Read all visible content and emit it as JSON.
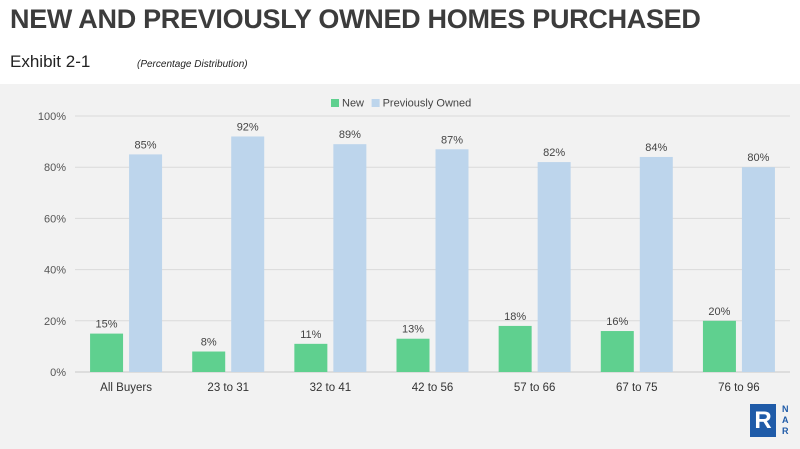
{
  "header": {
    "title": "NEW AND PREVIOUSLY OWNED HOMES PURCHASED",
    "exhibit": "Exhibit 2-1",
    "subtitle": "(Percentage Distribution)"
  },
  "logo": {
    "mark": "R",
    "letters": [
      "N",
      "A",
      "R"
    ],
    "color": "#1f5ba8"
  },
  "chart_data": {
    "type": "bar",
    "categories": [
      "All Buyers",
      "23 to 31",
      "32 to 41",
      "42 to 56",
      "57 to 66",
      "67 to 75",
      "76 to 96"
    ],
    "series": [
      {
        "name": "New",
        "color": "#5fd08f",
        "values": [
          15,
          8,
          11,
          13,
          18,
          16,
          20
        ]
      },
      {
        "name": "Previously Owned",
        "color": "#bdd5ec",
        "values": [
          85,
          92,
          89,
          87,
          82,
          84,
          80
        ]
      }
    ],
    "value_suffix": "%",
    "ylim": [
      0,
      100
    ],
    "yticks": [
      "0%",
      "20%",
      "40%",
      "60%",
      "80%",
      "100%"
    ],
    "ytick_values": [
      0,
      20,
      40,
      60,
      80,
      100
    ],
    "grid": true,
    "legend": "top-center"
  }
}
